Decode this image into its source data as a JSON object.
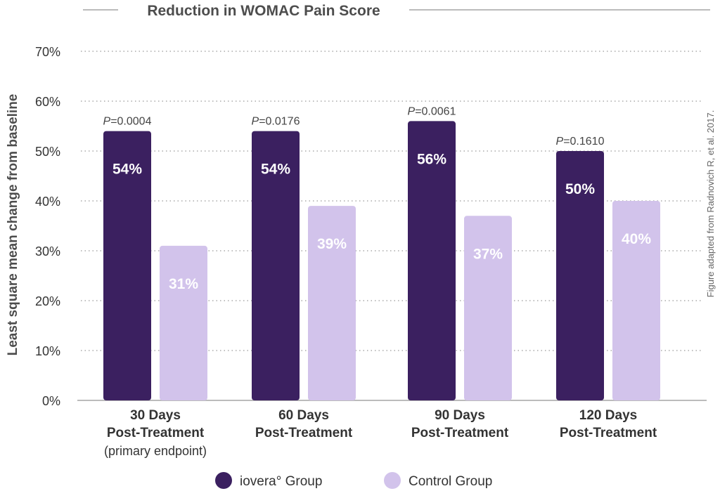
{
  "chart_data": {
    "type": "bar",
    "title": "Reduction in WOMAC Pain Score",
    "ylabel": "Least square mean change from baseline",
    "ylim": [
      0,
      70
    ],
    "yticks": [
      "0%",
      "10%",
      "20%",
      "30%",
      "40%",
      "50%",
      "60%",
      "70%"
    ],
    "grid": true,
    "categories": [
      {
        "line1": "30 Days",
        "line2": "Post-Treatment",
        "line3": "(primary endpoint)"
      },
      {
        "line1": "60 Days",
        "line2": "Post-Treatment",
        "line3": ""
      },
      {
        "line1": "90 Days",
        "line2": "Post-Treatment",
        "line3": ""
      },
      {
        "line1": "120 Days",
        "line2": "Post-Treatment",
        "line3": ""
      }
    ],
    "series": [
      {
        "name": "iovera° Group",
        "color": "#3b2060",
        "values": [
          54,
          54,
          56,
          50
        ],
        "labels": [
          "54%",
          "54%",
          "56%",
          "50%"
        ]
      },
      {
        "name": "Control Group",
        "color": "#d2c3eb",
        "values": [
          31,
          39,
          37,
          40
        ],
        "labels": [
          "31%",
          "39%",
          "37%",
          "40%"
        ]
      }
    ],
    "p_values": [
      {
        "prefix": "P",
        "value": "=0.0004"
      },
      {
        "prefix": "P",
        "value": "=0.0176"
      },
      {
        "prefix": "P",
        "value": "=0.0061"
      },
      {
        "prefix": "P",
        "value": "=0.1610"
      }
    ],
    "legend_position": "bottom",
    "source_note": "Figure adapted from Radnovich R, et al. 2017."
  }
}
